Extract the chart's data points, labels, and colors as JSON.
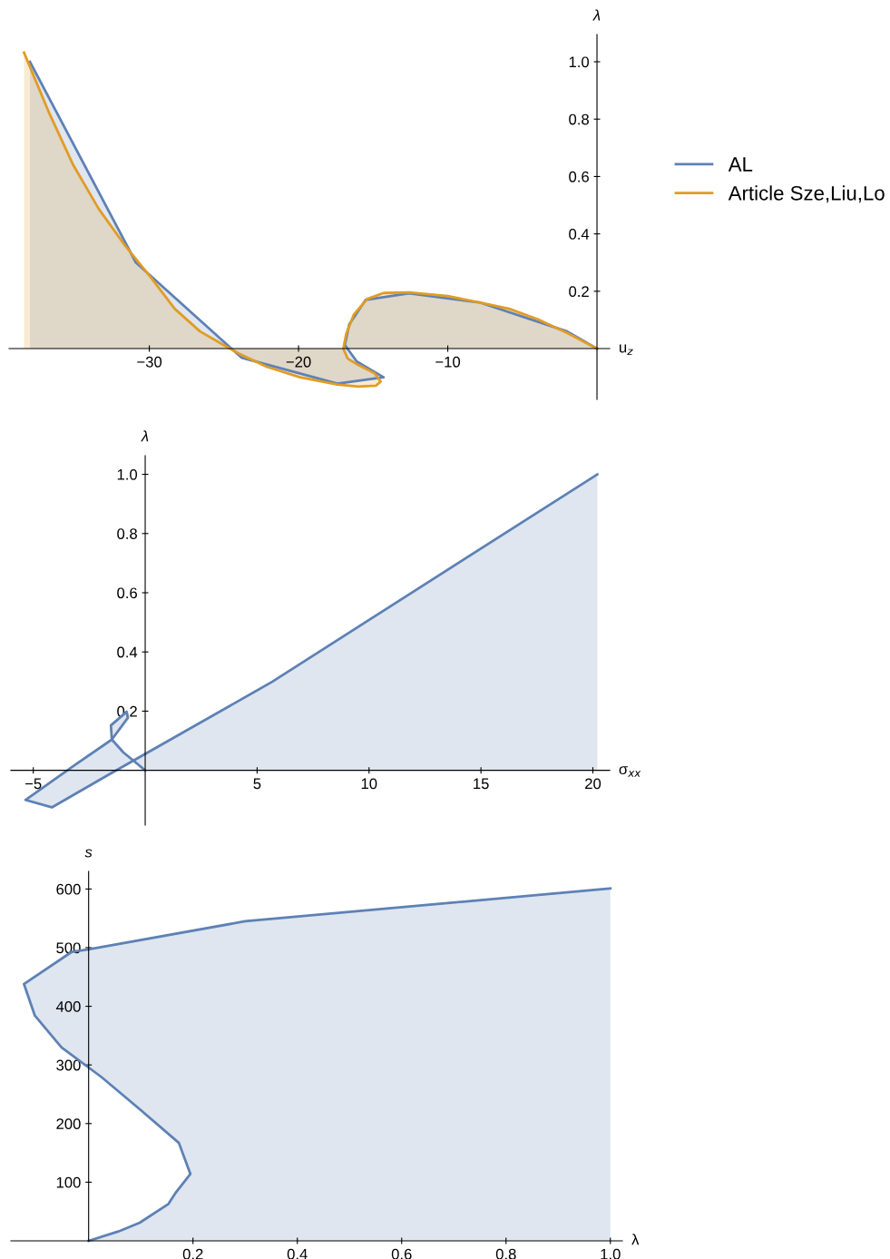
{
  "chart_data": [
    {
      "type": "area",
      "xlabel": "u$_{z}$",
      "ylabel": "λ",
      "xlim": [
        -39.4,
        0.85
      ],
      "ylim": [
        -0.177,
        1.095
      ],
      "xticks": [
        {
          "value": -30,
          "label": "−30"
        },
        {
          "value": -20,
          "label": "−20"
        },
        {
          "value": -10,
          "label": "−10"
        }
      ],
      "yticks": [
        0.2,
        0.4,
        0.6,
        0.8,
        {
          "value": 1,
          "label": "1.0"
        }
      ],
      "legend": "right",
      "series": [
        {
          "name": "AL",
          "color": "#5e81b5",
          "x": [
            0,
            -2.0,
            -7.8,
            -12.6,
            -15.5,
            -16.6,
            -16.9,
            -16.1,
            -14.3,
            -17.4,
            -23.8,
            -24.5,
            -30.9,
            -38.0
          ],
          "values": [
            0,
            0.06,
            0.16,
            0.193,
            0.17,
            0.085,
            0.013,
            -0.045,
            -0.1,
            -0.122,
            -0.032,
            0,
            0.3,
            1.0
          ]
        },
        {
          "name": "Article Sze,Liu,Lo",
          "color": "#e19c24",
          "x": [
            0,
            -2.0,
            -4.0,
            -5.9,
            -7.9,
            -10.0,
            -12.6,
            -14.3,
            -15.4,
            -16.3,
            -16.8,
            -17.0,
            -16.7,
            -16.0,
            -14.9,
            -14.5,
            -14.8,
            -16.0,
            -17.4,
            -19.9,
            -22.1,
            -23.9,
            -24.6,
            -26.6,
            -28.3,
            -29.9,
            -31.6,
            -33.4,
            -35.1,
            -36.7,
            -38.4
          ],
          "values": [
            0,
            0.055,
            0.103,
            0.139,
            0.161,
            0.183,
            0.196,
            0.194,
            0.173,
            0.118,
            0.052,
            0,
            -0.035,
            -0.057,
            -0.086,
            -0.115,
            -0.129,
            -0.132,
            -0.125,
            -0.1,
            -0.064,
            -0.02,
            0,
            0.06,
            0.139,
            0.248,
            0.357,
            0.488,
            0.64,
            0.82,
            1.032
          ]
        }
      ]
    },
    {
      "type": "area",
      "xlabel": "σ$_{xx}$",
      "ylabel": "λ",
      "xlim": [
        -6.0,
        20.75
      ],
      "ylim": [
        -0.185,
        1.063
      ],
      "xticks": [
        {
          "value": -5,
          "label": "−5"
        },
        5,
        10,
        15,
        20
      ],
      "yticks": [
        0.2,
        0.4,
        0.6,
        0.8,
        {
          "value": 1,
          "label": "1.0"
        }
      ],
      "series": [
        {
          "color": "#5e81b5",
          "x": [
            0,
            -0.98,
            -1.49,
            -1.53,
            -0.83,
            -0.77,
            -1.49,
            -3.09,
            -5.35,
            -4.17,
            -1.62,
            5.67,
            20.2
          ],
          "values": [
            0,
            0.061,
            0.104,
            0.152,
            0.198,
            0.178,
            0.104,
            0.021,
            -0.1,
            -0.125,
            -0.014,
            0.299,
            1.0
          ]
        }
      ]
    },
    {
      "type": "area",
      "xlabel": "λ",
      "ylabel": "s",
      "xlim": [
        -0.149,
        1.023
      ],
      "ylim": [
        0,
        630
      ],
      "xticks": [
        0.2,
        0.4,
        0.6,
        0.8,
        {
          "value": 1,
          "label": "1.0"
        }
      ],
      "yticks": [
        100,
        200,
        300,
        400,
        500,
        600
      ],
      "series": [
        {
          "color": "#5e81b5",
          "x": [
            0,
            0.057,
            0.098,
            0.153,
            0.166,
            0.195,
            0.173,
            0.1,
            0.025,
            -0.052,
            -0.103,
            -0.124,
            -0.032,
            0,
            0.3,
            1.0
          ],
          "values": [
            0,
            16,
            31,
            63,
            81,
            114,
            167,
            223,
            279,
            330,
            384,
            438,
            493,
            497,
            545,
            601
          ]
        }
      ]
    }
  ]
}
